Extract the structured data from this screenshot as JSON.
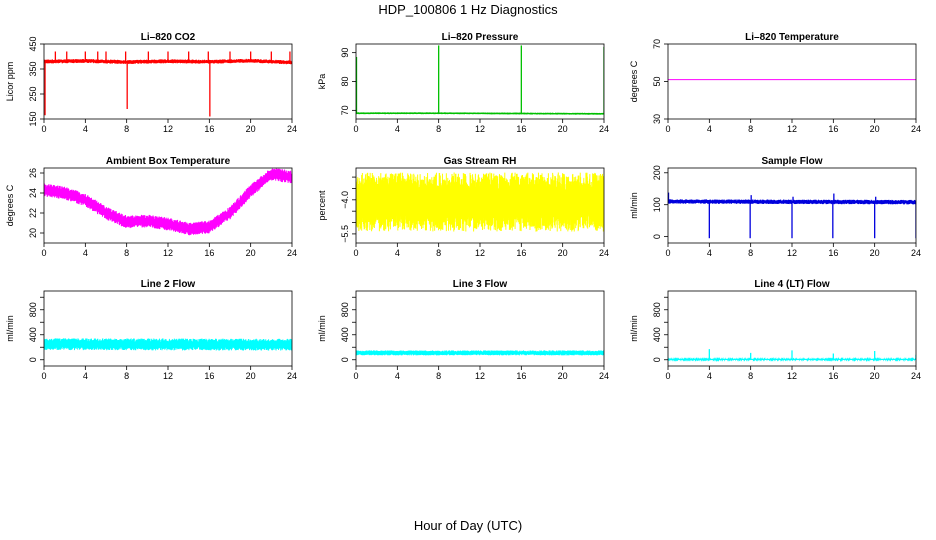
{
  "figure": {
    "title": "HDP_100806  1 Hz Diagnostics",
    "xlabel": "Hour of Day (UTC)"
  },
  "chart_data": [
    {
      "type": "line",
      "title": "Li–820 CO2",
      "ylabel": "Licor ppm",
      "color": "#ff0000",
      "xlim": [
        0,
        24
      ],
      "ylim": [
        150,
        450
      ],
      "x_ticks": [
        "0",
        "4",
        "8",
        "12",
        "16",
        "20",
        "24"
      ],
      "y_ticks": [
        {
          "v": 150,
          "t": "150"
        },
        {
          "v": 250,
          "t": "250"
        },
        {
          "v": 350,
          "t": "350"
        },
        {
          "v": 450,
          "t": "450"
        }
      ],
      "baseline": [
        [
          0,
          380
        ],
        [
          4,
          382
        ],
        [
          8,
          378
        ],
        [
          12,
          381
        ],
        [
          16,
          379
        ],
        [
          20,
          383
        ],
        [
          24,
          376
        ]
      ],
      "band": 8,
      "spikes": [
        {
          "x": 0.1,
          "y": 165
        },
        {
          "x": 1.1,
          "y": 420
        },
        {
          "x": 2.2,
          "y": 420
        },
        {
          "x": 4.0,
          "y": 420
        },
        {
          "x": 5.2,
          "y": 420
        },
        {
          "x": 6.0,
          "y": 420
        },
        {
          "x": 7.9,
          "y": 420
        },
        {
          "x": 8.05,
          "y": 190
        },
        {
          "x": 10.1,
          "y": 420
        },
        {
          "x": 12.0,
          "y": 420
        },
        {
          "x": 14.0,
          "y": 420
        },
        {
          "x": 15.9,
          "y": 420
        },
        {
          "x": 16.05,
          "y": 160
        },
        {
          "x": 18.0,
          "y": 420
        },
        {
          "x": 20.0,
          "y": 420
        },
        {
          "x": 22.0,
          "y": 420
        },
        {
          "x": 23.8,
          "y": 420
        }
      ]
    },
    {
      "type": "line",
      "title": "Li–820 Pressure",
      "ylabel": "kPa",
      "color": "#00c000",
      "xlim": [
        0,
        24
      ],
      "ylim": [
        67,
        93
      ],
      "x_ticks": [
        "0",
        "4",
        "8",
        "12",
        "16",
        "20",
        "24"
      ],
      "y_ticks": [
        {
          "v": 70,
          "t": "70"
        },
        {
          "v": 80,
          "t": "80"
        },
        {
          "v": 90,
          "t": "90"
        }
      ],
      "baseline": [
        [
          0,
          69.0
        ],
        [
          8,
          69.0
        ],
        [
          16,
          68.9
        ],
        [
          24,
          68.8
        ]
      ],
      "band": 0.3,
      "spikes": [
        {
          "x": 0.05,
          "y": 88.5
        },
        {
          "x": 8.0,
          "y": 92.5
        },
        {
          "x": 16.0,
          "y": 92.5
        },
        {
          "x": 24.0,
          "y": 92.0
        }
      ]
    },
    {
      "type": "line",
      "title": "Li–820 Temperature",
      "ylabel": "degrees C",
      "color": "#ff00ff",
      "xlim": [
        0,
        24
      ],
      "ylim": [
        30,
        70
      ],
      "x_ticks": [
        "0",
        "4",
        "8",
        "12",
        "16",
        "20",
        "24"
      ],
      "y_ticks": [
        {
          "v": 30,
          "t": "30"
        },
        {
          "v": 50,
          "t": "50"
        },
        {
          "v": 70,
          "t": "70"
        }
      ],
      "baseline": [
        [
          0,
          51
        ],
        [
          24,
          51
        ]
      ],
      "band": 0,
      "spikes": []
    },
    {
      "type": "line",
      "title": "Ambient Box Temperature",
      "ylabel": "degrees C",
      "color": "#ff00ff",
      "xlim": [
        0,
        24
      ],
      "ylim": [
        19,
        26.5
      ],
      "x_ticks": [
        "0",
        "4",
        "8",
        "12",
        "16",
        "20",
        "24"
      ],
      "y_ticks": [
        {
          "v": 20,
          "t": "20"
        },
        {
          "v": 22,
          "t": "22"
        },
        {
          "v": 24,
          "t": "24"
        },
        {
          "v": 26,
          "t": "26"
        }
      ],
      "baseline": [
        [
          0,
          24.3
        ],
        [
          2,
          24.0
        ],
        [
          4,
          23.3
        ],
        [
          6,
          22.0
        ],
        [
          8,
          21.1
        ],
        [
          10,
          21.2
        ],
        [
          12,
          20.9
        ],
        [
          14,
          20.4
        ],
        [
          16,
          20.6
        ],
        [
          18,
          22.0
        ],
        [
          20,
          24.2
        ],
        [
          22,
          25.9
        ],
        [
          24,
          25.6
        ]
      ],
      "band": 0.65,
      "spikes": []
    },
    {
      "type": "line",
      "title": "Gas Stream RH",
      "ylabel": "percent",
      "color": "#ffff00",
      "xlim": [
        0,
        24
      ],
      "ylim": [
        -5.9,
        -2.6
      ],
      "x_ticks": [
        "0",
        "4",
        "8",
        "12",
        "16",
        "20",
        "24"
      ],
      "y_ticks": [
        {
          "v": -5.5,
          "t": "−5.5"
        },
        {
          "v": -4.0,
          "t": "−4.0"
        }
      ],
      "y_minor": [
        -5.0,
        -4.5,
        -3.5,
        -3.0
      ],
      "baseline": [
        [
          0,
          -4.1
        ],
        [
          24,
          -4.1
        ]
      ],
      "band": 1.3,
      "spikes": []
    },
    {
      "type": "line",
      "title": "Sample Flow",
      "ylabel": "ml/min",
      "color": "#0000dd",
      "xlim": [
        0,
        24
      ],
      "ylim": [
        -20,
        215
      ],
      "x_ticks": [
        "0",
        "4",
        "8",
        "12",
        "16",
        "20",
        "24"
      ],
      "y_ticks": [
        {
          "v": 0,
          "t": "0"
        },
        {
          "v": 100,
          "t": "100"
        },
        {
          "v": 200,
          "t": "200"
        }
      ],
      "baseline": [
        [
          0,
          110
        ],
        [
          24,
          108
        ]
      ],
      "band": 7,
      "spikes": [
        {
          "x": 0.05,
          "y": 138
        },
        {
          "x": 4.0,
          "y": -5
        },
        {
          "x": 7.95,
          "y": -5
        },
        {
          "x": 8.05,
          "y": 130
        },
        {
          "x": 12.0,
          "y": -5
        },
        {
          "x": 12.1,
          "y": 125
        },
        {
          "x": 15.95,
          "y": -5
        },
        {
          "x": 16.05,
          "y": 135
        },
        {
          "x": 20.0,
          "y": -5
        },
        {
          "x": 20.1,
          "y": 125
        },
        {
          "x": 24.0,
          "y": -5
        }
      ]
    },
    {
      "type": "line",
      "title": "Line 2 Flow",
      "ylabel": "ml/min",
      "color": "#00ffff",
      "xlim": [
        0,
        24
      ],
      "ylim": [
        -100,
        1100
      ],
      "x_ticks": [
        "0",
        "4",
        "8",
        "12",
        "16",
        "20",
        "24"
      ],
      "y_ticks": [
        {
          "v": 0,
          "t": "0"
        },
        {
          "v": 400,
          "t": "400"
        },
        {
          "v": 800,
          "t": "800"
        }
      ],
      "y_minor": [
        200,
        600,
        1000
      ],
      "baseline": [
        [
          0,
          250
        ],
        [
          24,
          240
        ]
      ],
      "band": 95,
      "spikes": []
    },
    {
      "type": "line",
      "title": "Line 3 Flow",
      "ylabel": "ml/min",
      "color": "#00ffff",
      "xlim": [
        0,
        24
      ],
      "ylim": [
        -100,
        1100
      ],
      "x_ticks": [
        "0",
        "4",
        "8",
        "12",
        "16",
        "20",
        "24"
      ],
      "y_ticks": [
        {
          "v": 0,
          "t": "0"
        },
        {
          "v": 400,
          "t": "400"
        },
        {
          "v": 800,
          "t": "800"
        }
      ],
      "y_minor": [
        200,
        600,
        1000
      ],
      "baseline": [
        [
          0,
          110
        ],
        [
          24,
          110
        ]
      ],
      "band": 40,
      "spikes": []
    },
    {
      "type": "line",
      "title": "Line 4 (LT) Flow",
      "ylabel": "ml/min",
      "color": "#00ffff",
      "xlim": [
        0,
        24
      ],
      "ylim": [
        -100,
        1100
      ],
      "x_ticks": [
        "0",
        "4",
        "8",
        "12",
        "16",
        "20",
        "24"
      ],
      "y_ticks": [
        {
          "v": 0,
          "t": "0"
        },
        {
          "v": 400,
          "t": "400"
        },
        {
          "v": 800,
          "t": "800"
        }
      ],
      "y_minor": [
        200,
        600,
        1000
      ],
      "baseline": [
        [
          0,
          5
        ],
        [
          24,
          5
        ]
      ],
      "band": 8,
      "spikes": [
        {
          "x": 4.0,
          "y": 170
        },
        {
          "x": 8.0,
          "y": 110
        },
        {
          "x": 12.0,
          "y": 150
        },
        {
          "x": 16.0,
          "y": 100
        },
        {
          "x": 20.0,
          "y": 140
        },
        {
          "x": 24.0,
          "y": 80
        }
      ]
    }
  ]
}
